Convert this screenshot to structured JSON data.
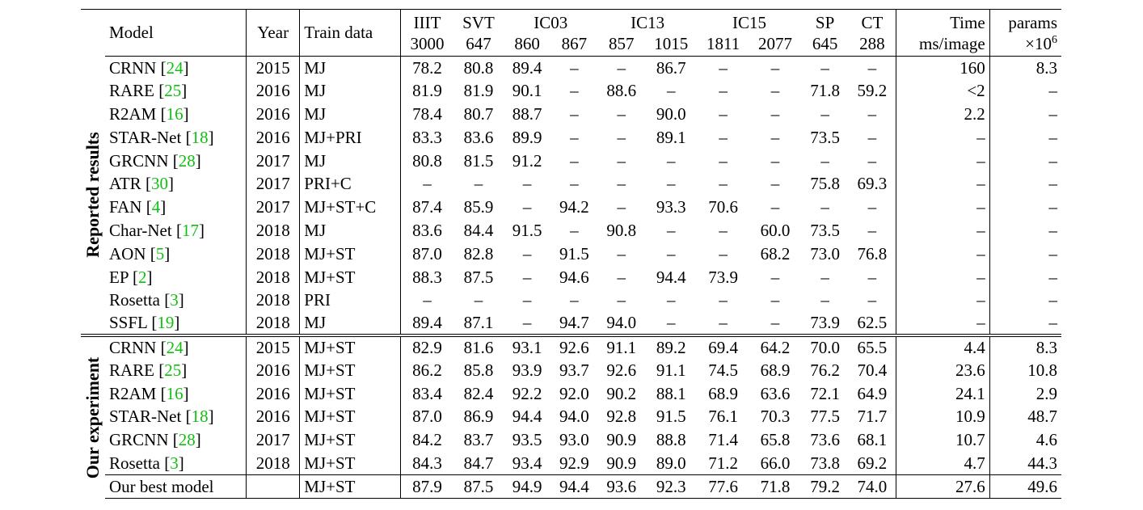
{
  "header": {
    "model": "Model",
    "year": "Year",
    "train": "Train data",
    "datasets": [
      {
        "name": "IIIT",
        "subs": [
          "3000"
        ]
      },
      {
        "name": "SVT",
        "subs": [
          "647"
        ]
      },
      {
        "name": "IC03",
        "subs": [
          "860",
          "867"
        ]
      },
      {
        "name": "IC13",
        "subs": [
          "857",
          "1015"
        ]
      },
      {
        "name": "IC15",
        "subs": [
          "1811",
          "2077"
        ]
      },
      {
        "name": "SP",
        "subs": [
          "645"
        ]
      },
      {
        "name": "CT",
        "subs": [
          "288"
        ]
      }
    ],
    "time_top": "Time",
    "time_bottom": "ms/image",
    "params_top": "params",
    "params_bottom": "×10",
    "params_exp": "6"
  },
  "groups": [
    {
      "label": "Reported results",
      "rows": [
        {
          "name": "CRNN",
          "ref": "24",
          "year": "2015",
          "train": "MJ",
          "scores": [
            "78.2",
            "80.8",
            "89.4",
            "–",
            "–",
            "86.7",
            "–",
            "–",
            "–",
            "–"
          ],
          "bold": [],
          "time": "160",
          "params": "8.3"
        },
        {
          "name": "RARE",
          "ref": "25",
          "year": "2016",
          "train": "MJ",
          "scores": [
            "81.9",
            "81.9",
            "90.1",
            "–",
            "88.6",
            "–",
            "–",
            "–",
            "71.8",
            "59.2"
          ],
          "bold": [],
          "time": "<2",
          "params": "–"
        },
        {
          "name": "R2AM",
          "ref": "16",
          "year": "2016",
          "train": "MJ",
          "scores": [
            "78.4",
            "80.7",
            "88.7",
            "–",
            "–",
            "90.0",
            "–",
            "–",
            "–",
            "–"
          ],
          "bold": [],
          "time": "2.2",
          "params": "–"
        },
        {
          "name": "STAR-Net",
          "ref": "18",
          "year": "2016",
          "train": "MJ+PRI",
          "scores": [
            "83.3",
            "83.6",
            "89.9",
            "–",
            "–",
            "89.1",
            "–",
            "–",
            "73.5",
            "–"
          ],
          "bold": [],
          "time": "–",
          "params": "–"
        },
        {
          "name": "GRCNN",
          "ref": "28",
          "year": "2017",
          "train": "MJ",
          "scores": [
            "80.8",
            "81.5",
            "91.2",
            "–",
            "–",
            "–",
            "–",
            "–",
            "–",
            "–"
          ],
          "bold": [],
          "time": "–",
          "params": "–"
        },
        {
          "name": "ATR",
          "ref": "30",
          "year": "2017",
          "train": "PRI+C",
          "scores": [
            "–",
            "–",
            "–",
            "–",
            "–",
            "–",
            "–",
            "–",
            "75.8",
            "69.3"
          ],
          "bold": [
            8
          ],
          "time": "–",
          "params": "–"
        },
        {
          "name": "FAN",
          "ref": "4",
          "year": "2017",
          "train": "MJ+ST+C",
          "scores": [
            "87.4",
            "85.9",
            "–",
            "94.2",
            "–",
            "93.3",
            "70.6",
            "–",
            "–",
            "–"
          ],
          "bold": [],
          "time": "–",
          "params": "–"
        },
        {
          "name": "Char-Net",
          "ref": "17",
          "year": "2018",
          "train": "MJ",
          "scores": [
            "83.6",
            "84.4",
            "91.5",
            "–",
            "90.8",
            "–",
            "–",
            "60.0",
            "73.5",
            "–"
          ],
          "bold": [
            2
          ],
          "time": "–",
          "params": "–"
        },
        {
          "name": "AON",
          "ref": "5",
          "year": "2018",
          "train": "MJ+ST",
          "scores": [
            "87.0",
            "82.8",
            "–",
            "91.5",
            "–",
            "–",
            "–",
            "68.2",
            "73.0",
            "76.8"
          ],
          "bold": [
            7,
            9
          ],
          "time": "–",
          "params": "–"
        },
        {
          "name": "EP",
          "ref": "2",
          "year": "2018",
          "train": "MJ+ST",
          "scores": [
            "88.3",
            "87.5",
            "–",
            "94.6",
            "–",
            "94.4",
            "73.9",
            "–",
            "–",
            "–"
          ],
          "bold": [
            1,
            5,
            6
          ],
          "time": "–",
          "params": "–"
        },
        {
          "name": "Rosetta",
          "ref": "3",
          "year": "2018",
          "train": "PRI",
          "scores": [
            "–",
            "–",
            "–",
            "–",
            "–",
            "–",
            "–",
            "–",
            "–",
            "–"
          ],
          "bold": [],
          "time": "–",
          "params": "–"
        },
        {
          "name": "SSFL",
          "ref": "19",
          "year": "2018",
          "train": "MJ",
          "scores": [
            "89.4",
            "87.1",
            "–",
            "94.7",
            "94.0",
            "–",
            "–",
            "–",
            "73.9",
            "62.5"
          ],
          "bold": [
            0,
            3,
            4
          ],
          "time": "–",
          "params": "–"
        }
      ]
    },
    {
      "label": "Our experiment",
      "rows": [
        {
          "name": "CRNN",
          "ref": "24",
          "year": "2015",
          "train": "MJ+ST",
          "scores": [
            "82.9",
            "81.6",
            "93.1",
            "92.6",
            "91.1",
            "89.2",
            "69.4",
            "64.2",
            "70.0",
            "65.5"
          ],
          "bold": [],
          "time": "4.4",
          "params": "8.3"
        },
        {
          "name": "RARE",
          "ref": "25",
          "year": "2016",
          "train": "MJ+ST",
          "scores": [
            "86.2",
            "85.8",
            "93.9",
            "93.7",
            "92.6",
            "91.1",
            "74.5",
            "68.9",
            "76.2",
            "70.4"
          ],
          "bold": [],
          "time": "23.6",
          "params": "10.8"
        },
        {
          "name": "R2AM",
          "ref": "16",
          "year": "2016",
          "train": "MJ+ST",
          "scores": [
            "83.4",
            "82.4",
            "92.2",
            "92.0",
            "90.2",
            "88.1",
            "68.9",
            "63.6",
            "72.1",
            "64.9"
          ],
          "bold": [],
          "time": "24.1",
          "params": "2.9"
        },
        {
          "name": "STAR-Net",
          "ref": "18",
          "year": "2016",
          "train": "MJ+ST",
          "scores": [
            "87.0",
            "86.9",
            "94.4",
            "94.0",
            "92.8",
            "91.5",
            "76.1",
            "70.3",
            "77.5",
            "71.7"
          ],
          "bold": [],
          "time": "10.9",
          "params": "48.7"
        },
        {
          "name": "GRCNN",
          "ref": "28",
          "year": "2017",
          "train": "MJ+ST",
          "scores": [
            "84.2",
            "83.7",
            "93.5",
            "93.0",
            "90.9",
            "88.8",
            "71.4",
            "65.8",
            "73.6",
            "68.1"
          ],
          "bold": [],
          "time": "10.7",
          "params": "4.6"
        },
        {
          "name": "Rosetta",
          "ref": "3",
          "year": "2018",
          "train": "MJ+ST",
          "scores": [
            "84.3",
            "84.7",
            "93.4",
            "92.9",
            "90.9",
            "89.0",
            "71.2",
            "66.0",
            "73.8",
            "69.2"
          ],
          "bold": [],
          "time": "4.7",
          "params": "44.3"
        },
        {
          "name": "Our best model",
          "ref": "",
          "year": "",
          "train": "MJ+ST",
          "scores": [
            "87.9",
            "87.5",
            "94.9",
            "94.4",
            "93.6",
            "92.3",
            "77.6",
            "71.8",
            "79.2",
            "74.0"
          ],
          "bold": [
            0,
            1,
            2,
            3,
            4,
            5,
            6,
            7,
            8,
            9
          ],
          "time": "27.6",
          "params": "49.6",
          "best": true
        }
      ]
    }
  ]
}
